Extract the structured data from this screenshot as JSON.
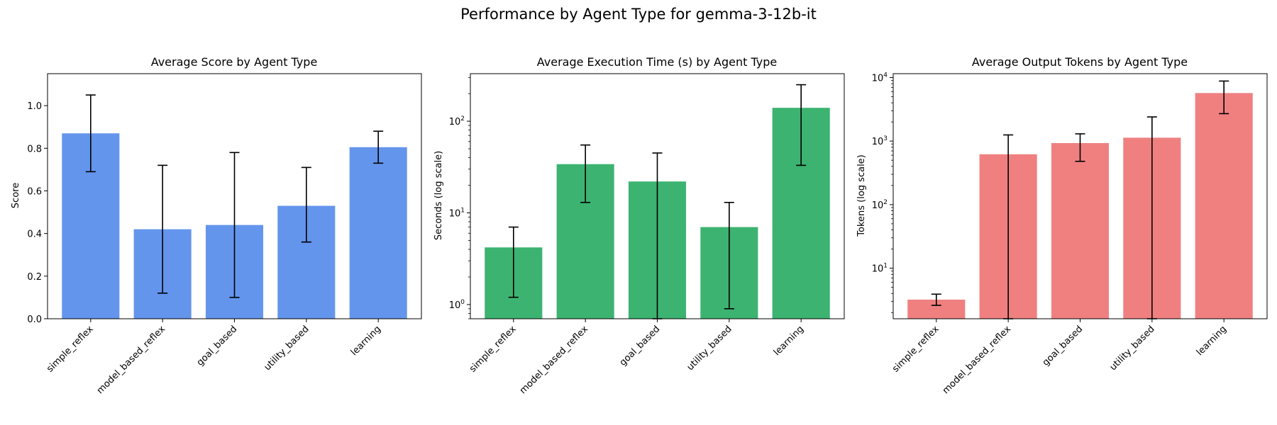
{
  "figure": {
    "title": "Performance by Agent Type for gemma-3-12b-it"
  },
  "chart_data": [
    {
      "type": "bar",
      "title": "Average Score by Agent Type",
      "xlabel": "",
      "ylabel": "Score",
      "yscale": "linear",
      "ylim": [
        0,
        1.15
      ],
      "yticks": [
        0.0,
        0.2,
        0.4,
        0.6,
        0.8,
        1.0
      ],
      "ytick_labels": [
        "0.0",
        "0.2",
        "0.4",
        "0.6",
        "0.8",
        "1.0"
      ],
      "color": "#6495ED",
      "categories": [
        "simple_reflex",
        "model_based_reflex",
        "goal_based",
        "utility_based",
        "learning"
      ],
      "values": [
        0.87,
        0.42,
        0.44,
        0.53,
        0.805
      ],
      "error_low": [
        0.69,
        0.12,
        0.1,
        0.36,
        0.73
      ],
      "error_high": [
        1.05,
        0.72,
        0.78,
        0.71,
        0.88
      ],
      "grid": false
    },
    {
      "type": "bar",
      "title": "Average Execution Time (s) by Agent Type",
      "xlabel": "",
      "ylabel": "Seconds (log scale)",
      "yscale": "log",
      "ylim": [
        0.7,
        330
      ],
      "yticks": [
        1,
        10,
        100
      ],
      "ytick_labels": [
        [
          "10",
          "0"
        ],
        [
          "10",
          "1"
        ],
        [
          "10",
          "2"
        ]
      ],
      "color": "#3CB371",
      "categories": [
        "simple_reflex",
        "model_based_reflex",
        "goal_based",
        "utility_based",
        "learning"
      ],
      "values": [
        4.2,
        34,
        22,
        7,
        140
      ],
      "error_low": [
        1.2,
        13,
        0.7,
        0.9,
        33
      ],
      "error_high": [
        7,
        55,
        45,
        13,
        250
      ],
      "grid": false
    },
    {
      "type": "bar",
      "title": "Average Output Tokens by Agent Type",
      "xlabel": "",
      "ylabel": "Tokens (log scale)",
      "yscale": "log",
      "ylim": [
        1.6,
        11500
      ],
      "yticks": [
        10,
        100,
        1000,
        10000
      ],
      "ytick_labels": [
        [
          "10",
          "1"
        ],
        [
          "10",
          "2"
        ],
        [
          "10",
          "3"
        ],
        [
          "10",
          "4"
        ]
      ],
      "color": "#F08080",
      "categories": [
        "simple_reflex",
        "model_based_reflex",
        "goal_based",
        "utility_based",
        "learning"
      ],
      "values": [
        3.2,
        620,
        930,
        1130,
        5700
      ],
      "error_low": [
        2.6,
        1.6,
        480,
        1.6,
        2700
      ],
      "error_high": [
        3.9,
        1250,
        1300,
        2400,
        8800
      ],
      "grid": false
    }
  ]
}
